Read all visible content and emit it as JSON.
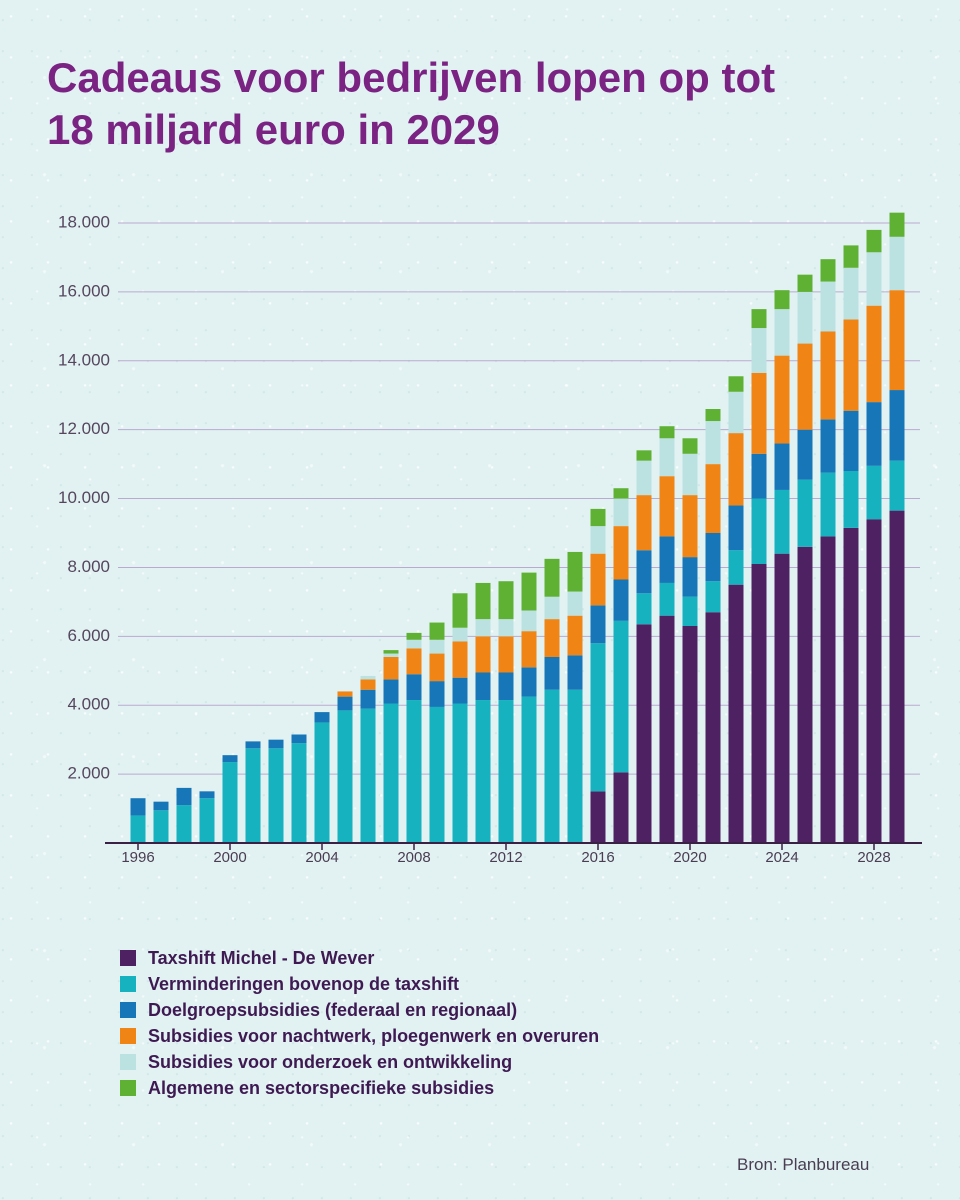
{
  "source": "Bron: Planbureau",
  "chart_data": {
    "type": "bar",
    "stacked": true,
    "title": [
      "Cadeaus voor bedrijven lopen op tot",
      "18 miljard euro in 2029"
    ],
    "xlabel": "",
    "ylabel": "",
    "ylim": [
      0,
      18000
    ],
    "grid": true,
    "legend_position": "bottom-left",
    "y_ticks": [
      2000,
      4000,
      6000,
      8000,
      10000,
      12000,
      14000,
      16000,
      18000
    ],
    "y_tick_labels": [
      "2.000",
      "4.000",
      "6.000",
      "8.000",
      "10.000",
      "12.000",
      "14.000",
      "16.000",
      "18.000"
    ],
    "x_tick_labels": [
      "1996",
      "2000",
      "2004",
      "2008",
      "2012",
      "2016",
      "2020",
      "2024",
      "2028"
    ],
    "categories": [
      1996,
      1997,
      1998,
      1999,
      2000,
      2001,
      2002,
      2003,
      2004,
      2005,
      2006,
      2007,
      2008,
      2009,
      2010,
      2011,
      2012,
      2013,
      2014,
      2015,
      2016,
      2017,
      2018,
      2019,
      2020,
      2021,
      2022,
      2023,
      2024,
      2025,
      2026,
      2027,
      2028,
      2029
    ],
    "series": [
      {
        "key": "taxshift",
        "name": "Taxshift Michel - De Wever",
        "color": "#4e2163",
        "values": [
          0,
          0,
          0,
          0,
          0,
          0,
          0,
          0,
          0,
          0,
          0,
          0,
          0,
          0,
          0,
          0,
          0,
          0,
          0,
          0,
          1500,
          2050,
          6350,
          6600,
          6300,
          6700,
          7500,
          8100,
          8400,
          8600,
          8900,
          9150,
          9400,
          9650
        ]
      },
      {
        "key": "verminderingen",
        "name": "Verminderingen bovenop de taxshift",
        "color": "#17b2bf",
        "values": [
          800,
          950,
          1100,
          1300,
          2350,
          2750,
          2750,
          2900,
          3500,
          3850,
          3900,
          4050,
          4150,
          3950,
          4050,
          4150,
          4150,
          4250,
          4450,
          4450,
          4300,
          4400,
          900,
          950,
          850,
          900,
          1000,
          1900,
          1850,
          1950,
          1850,
          1650,
          1550,
          1450
        ]
      },
      {
        "key": "doelgroep",
        "name": "Doelgroepsubsidies (federaal en regionaal)",
        "color": "#1676b8",
        "values": [
          500,
          250,
          500,
          200,
          200,
          200,
          250,
          250,
          300,
          400,
          550,
          700,
          750,
          750,
          750,
          800,
          800,
          850,
          950,
          1000,
          1100,
          1200,
          1250,
          1350,
          1150,
          1400,
          1300,
          1300,
          1350,
          1450,
          1550,
          1750,
          1850,
          2050
        ]
      },
      {
        "key": "nachtwerk",
        "name": "Subsidies voor nachtwerk, ploegenwerk en overuren",
        "color": "#f08414",
        "values": [
          0,
          0,
          0,
          0,
          0,
          0,
          0,
          0,
          0,
          150,
          300,
          650,
          750,
          800,
          1050,
          1050,
          1050,
          1050,
          1100,
          1150,
          1500,
          1550,
          1600,
          1750,
          1800,
          2000,
          2100,
          2350,
          2550,
          2500,
          2550,
          2650,
          2800,
          2900
        ]
      },
      {
        "key": "onderzoek",
        "name": "Subsidies voor onderzoek en ontwikkeling",
        "color": "#bce1e1",
        "values": [
          0,
          0,
          0,
          0,
          0,
          0,
          0,
          0,
          0,
          0,
          100,
          100,
          250,
          400,
          400,
          500,
          500,
          600,
          650,
          700,
          800,
          800,
          1000,
          1100,
          1200,
          1250,
          1200,
          1300,
          1350,
          1500,
          1450,
          1500,
          1550,
          1550
        ]
      },
      {
        "key": "algemeen",
        "name": "Algemene en sectorspecifieke subsidies",
        "color": "#5fb134",
        "values": [
          0,
          0,
          0,
          0,
          0,
          0,
          0,
          0,
          0,
          0,
          0,
          100,
          200,
          500,
          1000,
          1050,
          1100,
          1100,
          1100,
          1150,
          500,
          300,
          300,
          350,
          450,
          350,
          450,
          550,
          550,
          500,
          650,
          650,
          650,
          700
        ]
      }
    ],
    "colors": {
      "title": "#7a2382",
      "gridline": "#b9aacf",
      "axis": "#3b2046"
    }
  }
}
